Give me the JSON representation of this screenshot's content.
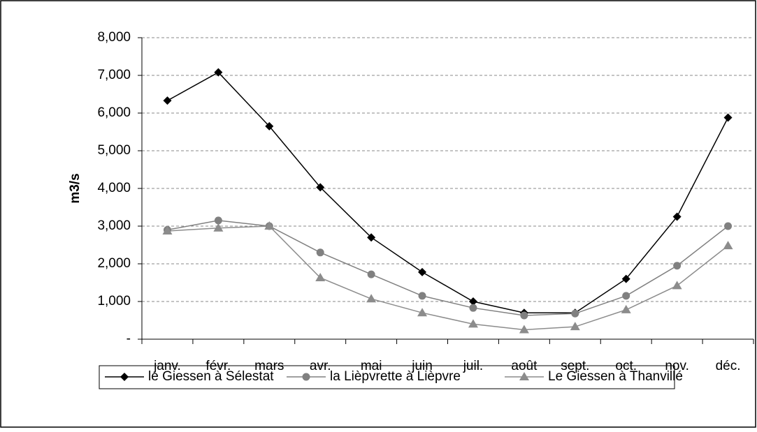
{
  "chart_data": {
    "type": "line",
    "y_label": "m3/s",
    "categories": [
      "janv.",
      "févr.",
      "mars",
      "avr.",
      "mai",
      "juin",
      "juil.",
      "août",
      "sept.",
      "oct.",
      "nov.",
      "déc."
    ],
    "series": [
      {
        "name": "le Giessen à Sélestat",
        "color": "#000000",
        "marker": "diamond",
        "values": [
          6330,
          7080,
          5650,
          4030,
          2700,
          1780,
          1000,
          700,
          700,
          1600,
          3250,
          5880
        ]
      },
      {
        "name": "la Lièpvrette à Lièpvre",
        "color": "#808080",
        "marker": "circle",
        "values": [
          2900,
          3150,
          3000,
          2300,
          1720,
          1150,
          830,
          630,
          680,
          1150,
          1950,
          3000
        ]
      },
      {
        "name": "Le Giessen à Thanvillé",
        "color": "#8c8c8c",
        "marker": "triangle",
        "values": [
          2870,
          2950,
          3000,
          1630,
          1070,
          700,
          400,
          250,
          330,
          780,
          1420,
          2480
        ]
      }
    ],
    "ylim": [
      0,
      8000
    ],
    "yticks": [
      {
        "value": 0,
        "label": "-"
      },
      {
        "value": 1000,
        "label": "1,000"
      },
      {
        "value": 2000,
        "label": "2,000"
      },
      {
        "value": 3000,
        "label": "3,000"
      },
      {
        "value": 4000,
        "label": "4,000"
      },
      {
        "value": 5000,
        "label": "5,000"
      },
      {
        "value": 6000,
        "label": "6,000"
      },
      {
        "value": 7000,
        "label": "7,000"
      },
      {
        "value": 8000,
        "label": "8,000"
      }
    ],
    "grid": true,
    "legend": "bottom"
  }
}
